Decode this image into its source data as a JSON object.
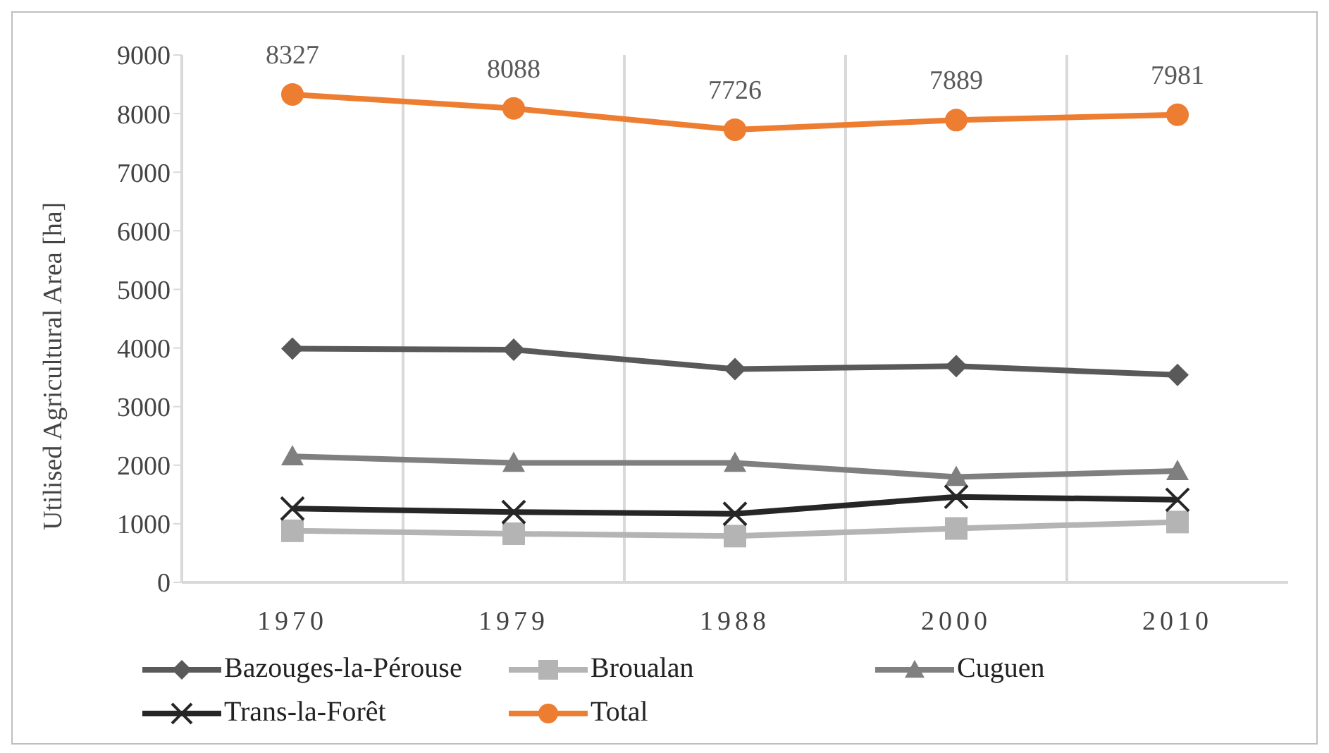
{
  "chart_data": {
    "type": "line",
    "ylabel": "Utilised Agricultural Area [ha]",
    "categories": [
      "1970",
      "1979",
      "1988",
      "2000",
      "2010"
    ],
    "ylim": [
      0,
      9000
    ],
    "yticks": [
      0,
      1000,
      2000,
      3000,
      4000,
      5000,
      6000,
      7000,
      8000,
      9000
    ],
    "grid": "x",
    "legend": "bottom",
    "series": [
      {
        "name": "Bazouges-la-Pérouse",
        "color": "#595959",
        "marker": "diamond",
        "values": [
          3990,
          3970,
          3640,
          3690,
          3540
        ]
      },
      {
        "name": "Broualan",
        "color": "#b4b4b4",
        "marker": "square",
        "values": [
          880,
          830,
          790,
          920,
          1030
        ]
      },
      {
        "name": "Cuguen",
        "color": "#7f7f7f",
        "marker": "triangle",
        "values": [
          2150,
          2040,
          2040,
          1800,
          1900
        ]
      },
      {
        "name": "Trans-la-Forêt",
        "color": "#262626",
        "marker": "cross",
        "values": [
          1260,
          1200,
          1170,
          1460,
          1410
        ]
      },
      {
        "name": "Total",
        "color": "#ed7d31",
        "marker": "circle",
        "values": [
          8327,
          8088,
          7726,
          7889,
          7981
        ],
        "value_labels": [
          "8327",
          "8088",
          "7726",
          "7889",
          "7981"
        ]
      }
    ]
  }
}
